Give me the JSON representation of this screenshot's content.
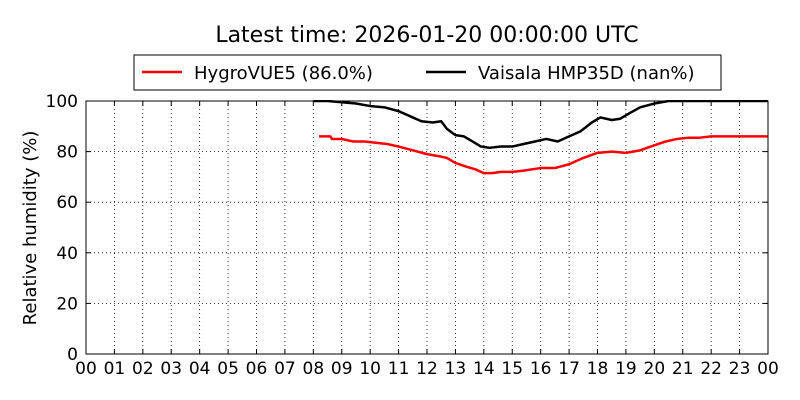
{
  "chart_data": {
    "type": "line",
    "title": "Latest time: 2026-01-20 00:00:00 UTC",
    "xlabel": "",
    "ylabel": "Relative humidity (%)",
    "xlim": [
      0,
      24
    ],
    "ylim": [
      0,
      100
    ],
    "x_ticks": [
      "00",
      "01",
      "02",
      "03",
      "04",
      "05",
      "06",
      "07",
      "08",
      "09",
      "10",
      "11",
      "12",
      "13",
      "14",
      "15",
      "16",
      "17",
      "18",
      "19",
      "20",
      "21",
      "22",
      "23",
      "00"
    ],
    "y_ticks": [
      0,
      20,
      40,
      60,
      80,
      100
    ],
    "grid": true,
    "legend_placement": "top-center",
    "series": [
      {
        "name": "HygroVUE5 (86.0%)",
        "color": "#ff0000",
        "x": [
          8.2,
          8.6,
          8.65,
          9,
          9.4,
          9.8,
          10.2,
          10.6,
          11,
          11.5,
          12,
          12.5,
          12.7,
          13,
          13.4,
          13.7,
          14,
          14.3,
          14.6,
          15,
          15.4,
          16,
          16.5,
          17,
          17.5,
          18,
          18.5,
          19,
          19.5,
          20,
          20.4,
          20.8,
          21.2,
          21.6,
          22,
          22.4,
          23,
          23.5,
          24
        ],
        "y": [
          86,
          86,
          85,
          85,
          84,
          84,
          83.5,
          83,
          82,
          80.5,
          79,
          78,
          77.5,
          75.5,
          74,
          73,
          71.5,
          71.5,
          72,
          72,
          72.5,
          73.5,
          73.5,
          75,
          77.5,
          79.5,
          80,
          79.5,
          80.5,
          82.5,
          84,
          85,
          85.5,
          85.5,
          86,
          86,
          86,
          86,
          86
        ]
      },
      {
        "name": "Vaisala HMP35D (nan%)",
        "color": "#000000",
        "x": [
          8.0,
          8.5,
          9,
          9.5,
          10,
          10.5,
          11,
          11.4,
          11.8,
          12.2,
          12.5,
          12.7,
          13,
          13.3,
          13.6,
          13.9,
          14.2,
          14.6,
          15,
          15.4,
          15.8,
          16.2,
          16.6,
          17,
          17.4,
          17.8,
          18.1,
          18.5,
          18.8,
          19.1,
          19.5,
          20,
          20.5,
          21,
          21.5,
          22,
          22.5,
          24
        ],
        "y": [
          100,
          100,
          99.5,
          99,
          98,
          97.5,
          96,
          94,
          92,
          91.5,
          92,
          89,
          86.5,
          86,
          84,
          82,
          81.5,
          82,
          82,
          83,
          84,
          85,
          84,
          86,
          88,
          91.5,
          93.5,
          92.5,
          93,
          95,
          97.5,
          99,
          100,
          100,
          100,
          100,
          100,
          100
        ]
      }
    ]
  }
}
